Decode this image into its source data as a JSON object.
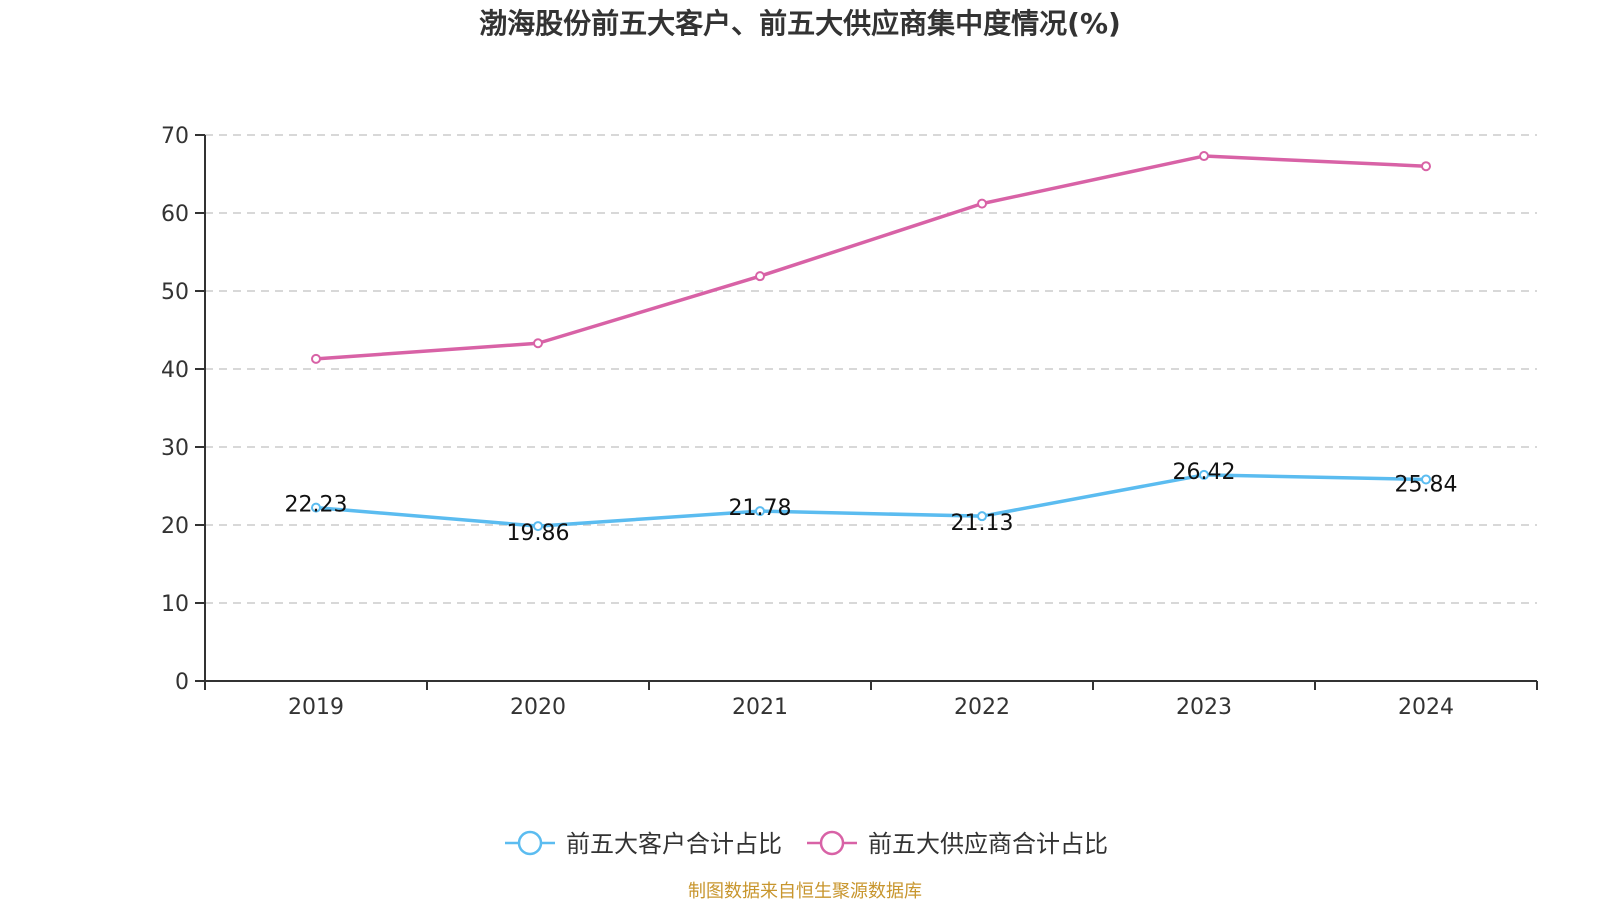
{
  "chart_data": {
    "type": "line",
    "title": "渤海股份前五大客户、前五大供应商集中度情况(%)",
    "xlabel": "",
    "ylabel": "",
    "categories": [
      "2019",
      "2020",
      "2021",
      "2022",
      "2023",
      "2024"
    ],
    "ylim": [
      0,
      70
    ],
    "yticks": [
      0,
      10,
      20,
      30,
      40,
      50,
      60,
      70
    ],
    "grid": true,
    "legend_position": "bottom-center",
    "series": [
      {
        "name": "前五大客户合计占比",
        "color": "#5bbcf0",
        "values": [
          22.23,
          19.86,
          21.78,
          21.13,
          26.42,
          25.84
        ],
        "labels": [
          "22.23",
          "19.86",
          "21.78",
          "21.13",
          "26.42",
          "25.84"
        ],
        "show_labels": true
      },
      {
        "name": "前五大供应商合计占比",
        "color": "#d862a6",
        "values": [
          41.3,
          43.3,
          51.9,
          61.2,
          67.3,
          66.0
        ],
        "show_labels": false
      }
    ],
    "footer": "制图数据来自恒生聚源数据库"
  }
}
